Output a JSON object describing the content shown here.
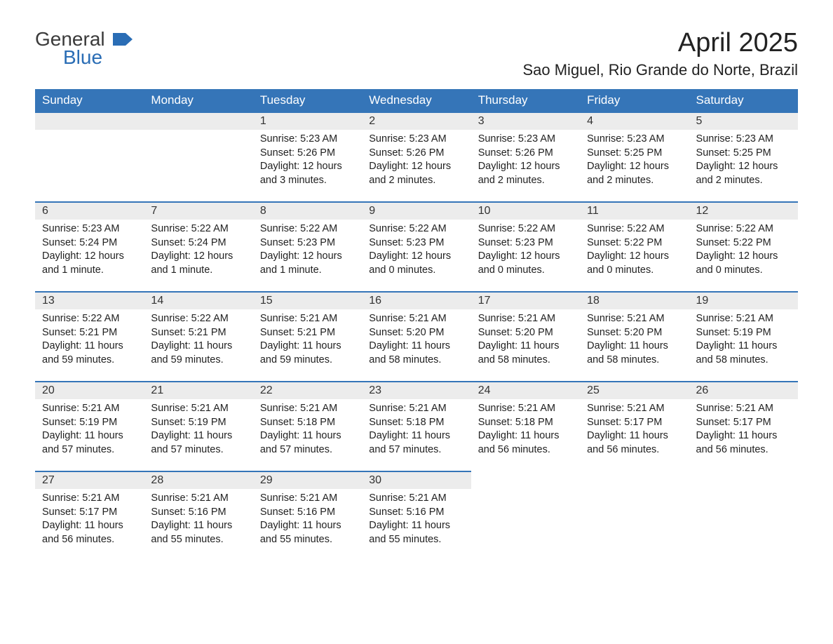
{
  "logo": {
    "text_general": "General",
    "text_blue": "Blue",
    "flag_color": "#2a6db5"
  },
  "title": "April 2025",
  "location": "Sao Miguel, Rio Grande do Norte, Brazil",
  "colors": {
    "header_bg": "#3575b8",
    "header_text": "#ffffff",
    "day_number_bg": "#ececec",
    "day_border": "#3575b8",
    "text": "#222222",
    "logo_blue": "#2a6db5",
    "logo_gray": "#3a3a3a"
  },
  "day_headers": [
    "Sunday",
    "Monday",
    "Tuesday",
    "Wednesday",
    "Thursday",
    "Friday",
    "Saturday"
  ],
  "weeks": [
    [
      null,
      null,
      {
        "num": "1",
        "sunrise": "Sunrise: 5:23 AM",
        "sunset": "Sunset: 5:26 PM",
        "daylight1": "Daylight: 12 hours",
        "daylight2": "and 3 minutes."
      },
      {
        "num": "2",
        "sunrise": "Sunrise: 5:23 AM",
        "sunset": "Sunset: 5:26 PM",
        "daylight1": "Daylight: 12 hours",
        "daylight2": "and 2 minutes."
      },
      {
        "num": "3",
        "sunrise": "Sunrise: 5:23 AM",
        "sunset": "Sunset: 5:26 PM",
        "daylight1": "Daylight: 12 hours",
        "daylight2": "and 2 minutes."
      },
      {
        "num": "4",
        "sunrise": "Sunrise: 5:23 AM",
        "sunset": "Sunset: 5:25 PM",
        "daylight1": "Daylight: 12 hours",
        "daylight2": "and 2 minutes."
      },
      {
        "num": "5",
        "sunrise": "Sunrise: 5:23 AM",
        "sunset": "Sunset: 5:25 PM",
        "daylight1": "Daylight: 12 hours",
        "daylight2": "and 2 minutes."
      }
    ],
    [
      {
        "num": "6",
        "sunrise": "Sunrise: 5:23 AM",
        "sunset": "Sunset: 5:24 PM",
        "daylight1": "Daylight: 12 hours",
        "daylight2": "and 1 minute."
      },
      {
        "num": "7",
        "sunrise": "Sunrise: 5:22 AM",
        "sunset": "Sunset: 5:24 PM",
        "daylight1": "Daylight: 12 hours",
        "daylight2": "and 1 minute."
      },
      {
        "num": "8",
        "sunrise": "Sunrise: 5:22 AM",
        "sunset": "Sunset: 5:23 PM",
        "daylight1": "Daylight: 12 hours",
        "daylight2": "and 1 minute."
      },
      {
        "num": "9",
        "sunrise": "Sunrise: 5:22 AM",
        "sunset": "Sunset: 5:23 PM",
        "daylight1": "Daylight: 12 hours",
        "daylight2": "and 0 minutes."
      },
      {
        "num": "10",
        "sunrise": "Sunrise: 5:22 AM",
        "sunset": "Sunset: 5:23 PM",
        "daylight1": "Daylight: 12 hours",
        "daylight2": "and 0 minutes."
      },
      {
        "num": "11",
        "sunrise": "Sunrise: 5:22 AM",
        "sunset": "Sunset: 5:22 PM",
        "daylight1": "Daylight: 12 hours",
        "daylight2": "and 0 minutes."
      },
      {
        "num": "12",
        "sunrise": "Sunrise: 5:22 AM",
        "sunset": "Sunset: 5:22 PM",
        "daylight1": "Daylight: 12 hours",
        "daylight2": "and 0 minutes."
      }
    ],
    [
      {
        "num": "13",
        "sunrise": "Sunrise: 5:22 AM",
        "sunset": "Sunset: 5:21 PM",
        "daylight1": "Daylight: 11 hours",
        "daylight2": "and 59 minutes."
      },
      {
        "num": "14",
        "sunrise": "Sunrise: 5:22 AM",
        "sunset": "Sunset: 5:21 PM",
        "daylight1": "Daylight: 11 hours",
        "daylight2": "and 59 minutes."
      },
      {
        "num": "15",
        "sunrise": "Sunrise: 5:21 AM",
        "sunset": "Sunset: 5:21 PM",
        "daylight1": "Daylight: 11 hours",
        "daylight2": "and 59 minutes."
      },
      {
        "num": "16",
        "sunrise": "Sunrise: 5:21 AM",
        "sunset": "Sunset: 5:20 PM",
        "daylight1": "Daylight: 11 hours",
        "daylight2": "and 58 minutes."
      },
      {
        "num": "17",
        "sunrise": "Sunrise: 5:21 AM",
        "sunset": "Sunset: 5:20 PM",
        "daylight1": "Daylight: 11 hours",
        "daylight2": "and 58 minutes."
      },
      {
        "num": "18",
        "sunrise": "Sunrise: 5:21 AM",
        "sunset": "Sunset: 5:20 PM",
        "daylight1": "Daylight: 11 hours",
        "daylight2": "and 58 minutes."
      },
      {
        "num": "19",
        "sunrise": "Sunrise: 5:21 AM",
        "sunset": "Sunset: 5:19 PM",
        "daylight1": "Daylight: 11 hours",
        "daylight2": "and 58 minutes."
      }
    ],
    [
      {
        "num": "20",
        "sunrise": "Sunrise: 5:21 AM",
        "sunset": "Sunset: 5:19 PM",
        "daylight1": "Daylight: 11 hours",
        "daylight2": "and 57 minutes."
      },
      {
        "num": "21",
        "sunrise": "Sunrise: 5:21 AM",
        "sunset": "Sunset: 5:19 PM",
        "daylight1": "Daylight: 11 hours",
        "daylight2": "and 57 minutes."
      },
      {
        "num": "22",
        "sunrise": "Sunrise: 5:21 AM",
        "sunset": "Sunset: 5:18 PM",
        "daylight1": "Daylight: 11 hours",
        "daylight2": "and 57 minutes."
      },
      {
        "num": "23",
        "sunrise": "Sunrise: 5:21 AM",
        "sunset": "Sunset: 5:18 PM",
        "daylight1": "Daylight: 11 hours",
        "daylight2": "and 57 minutes."
      },
      {
        "num": "24",
        "sunrise": "Sunrise: 5:21 AM",
        "sunset": "Sunset: 5:18 PM",
        "daylight1": "Daylight: 11 hours",
        "daylight2": "and 56 minutes."
      },
      {
        "num": "25",
        "sunrise": "Sunrise: 5:21 AM",
        "sunset": "Sunset: 5:17 PM",
        "daylight1": "Daylight: 11 hours",
        "daylight2": "and 56 minutes."
      },
      {
        "num": "26",
        "sunrise": "Sunrise: 5:21 AM",
        "sunset": "Sunset: 5:17 PM",
        "daylight1": "Daylight: 11 hours",
        "daylight2": "and 56 minutes."
      }
    ],
    [
      {
        "num": "27",
        "sunrise": "Sunrise: 5:21 AM",
        "sunset": "Sunset: 5:17 PM",
        "daylight1": "Daylight: 11 hours",
        "daylight2": "and 56 minutes."
      },
      {
        "num": "28",
        "sunrise": "Sunrise: 5:21 AM",
        "sunset": "Sunset: 5:16 PM",
        "daylight1": "Daylight: 11 hours",
        "daylight2": "and 55 minutes."
      },
      {
        "num": "29",
        "sunrise": "Sunrise: 5:21 AM",
        "sunset": "Sunset: 5:16 PM",
        "daylight1": "Daylight: 11 hours",
        "daylight2": "and 55 minutes."
      },
      {
        "num": "30",
        "sunrise": "Sunrise: 5:21 AM",
        "sunset": "Sunset: 5:16 PM",
        "daylight1": "Daylight: 11 hours",
        "daylight2": "and 55 minutes."
      },
      null,
      null,
      null
    ]
  ]
}
